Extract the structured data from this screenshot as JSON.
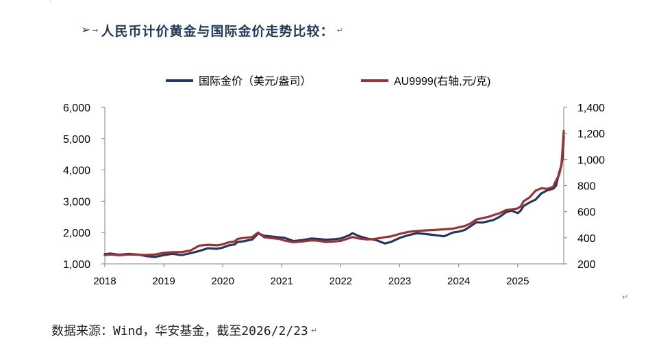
{
  "page": {
    "heading": {
      "bullet": "➢",
      "tab_mark": "→",
      "text": "人民币计价黄金与国际金价走势比较：",
      "paragraph_mark": "↵"
    },
    "footer": {
      "text": "数据来源：Wind，华安基金，截至2026/2/23",
      "paragraph_mark": "↵"
    },
    "stray_paragraph_mark": "↵",
    "stray_top_mark": "'"
  },
  "chart_data": {
    "type": "line",
    "title": "",
    "xlabel": "",
    "ylabel": "",
    "x_tick_labels": [
      "2018",
      "2019",
      "2020",
      "2021",
      "2022",
      "2023",
      "2024",
      "2025"
    ],
    "x_range": [
      2018.0,
      2025.78
    ],
    "y_left": {
      "ylim": [
        1000,
        6000
      ],
      "tick_values": [
        1000,
        2000,
        3000,
        4000,
        5000,
        6000
      ],
      "tick_labels": [
        "1,000",
        "2,000",
        "3,000",
        "4,000",
        "5,000",
        "6,000"
      ]
    },
    "y_right": {
      "ylim": [
        200,
        1400
      ],
      "tick_values": [
        200,
        400,
        600,
        800,
        1000,
        1200,
        1400
      ],
      "tick_labels": [
        "200",
        "400",
        "600",
        "800",
        "1,000",
        "1,200",
        "1,400"
      ]
    },
    "grid": false,
    "legend_position": "top-center",
    "series": [
      {
        "name": "国际金价（美元/盎司）",
        "axis": "left",
        "color": "#1f3864",
        "x": [
          2018.0,
          2018.1,
          2018.25,
          2018.4,
          2018.55,
          2018.7,
          2018.85,
          2019.0,
          2019.15,
          2019.3,
          2019.45,
          2019.6,
          2019.75,
          2019.9,
          2020.0,
          2020.1,
          2020.2,
          2020.25,
          2020.35,
          2020.5,
          2020.6,
          2020.7,
          2020.8,
          2020.95,
          2021.05,
          2021.2,
          2021.35,
          2021.5,
          2021.6,
          2021.75,
          2021.9,
          2022.0,
          2022.15,
          2022.2,
          2022.3,
          2022.45,
          2022.6,
          2022.75,
          2022.85,
          2023.0,
          2023.15,
          2023.3,
          2023.45,
          2023.6,
          2023.75,
          2023.9,
          2024.0,
          2024.1,
          2024.2,
          2024.3,
          2024.4,
          2024.5,
          2024.6,
          2024.7,
          2024.8,
          2024.9,
          2025.0,
          2025.05,
          2025.1,
          2025.2,
          2025.3,
          2025.4,
          2025.5,
          2025.6,
          2025.65,
          2025.7,
          2025.74,
          2025.76,
          2025.78
        ],
        "values": [
          1310,
          1330,
          1290,
          1320,
          1300,
          1250,
          1220,
          1280,
          1320,
          1280,
          1340,
          1410,
          1500,
          1480,
          1520,
          1590,
          1620,
          1700,
          1720,
          1780,
          1970,
          1900,
          1880,
          1850,
          1830,
          1730,
          1760,
          1810,
          1800,
          1770,
          1790,
          1810,
          1920,
          1980,
          1890,
          1810,
          1760,
          1650,
          1700,
          1830,
          1920,
          1980,
          1950,
          1920,
          1880,
          2000,
          2030,
          2080,
          2200,
          2330,
          2320,
          2360,
          2410,
          2510,
          2650,
          2700,
          2620,
          2700,
          2850,
          2960,
          3050,
          3250,
          3350,
          3400,
          3500,
          3900,
          4150,
          4400,
          5080
        ]
      },
      {
        "name": "AU9999(右轴,元/克)",
        "axis": "right",
        "color": "#a0302f",
        "x": [
          2018.0,
          2018.1,
          2018.25,
          2018.4,
          2018.55,
          2018.7,
          2018.85,
          2019.0,
          2019.15,
          2019.3,
          2019.45,
          2019.6,
          2019.75,
          2019.9,
          2020.0,
          2020.1,
          2020.2,
          2020.25,
          2020.35,
          2020.5,
          2020.6,
          2020.7,
          2020.8,
          2020.95,
          2021.05,
          2021.2,
          2021.35,
          2021.5,
          2021.6,
          2021.75,
          2021.9,
          2022.0,
          2022.15,
          2022.2,
          2022.3,
          2022.45,
          2022.6,
          2022.75,
          2022.85,
          2023.0,
          2023.15,
          2023.3,
          2023.45,
          2023.6,
          2023.75,
          2023.9,
          2024.0,
          2024.1,
          2024.2,
          2024.3,
          2024.4,
          2024.5,
          2024.6,
          2024.7,
          2024.8,
          2024.9,
          2025.0,
          2025.05,
          2025.1,
          2025.2,
          2025.3,
          2025.4,
          2025.5,
          2025.6,
          2025.65,
          2025.7,
          2025.74,
          2025.76,
          2025.78
        ],
        "values": [
          268,
          272,
          266,
          272,
          270,
          268,
          272,
          285,
          290,
          290,
          302,
          340,
          346,
          342,
          350,
          365,
          372,
          392,
          398,
          406,
          440,
          405,
          398,
          392,
          378,
          366,
          372,
          380,
          378,
          368,
          372,
          376,
          398,
          406,
          395,
          387,
          393,
          405,
          410,
          430,
          445,
          452,
          457,
          460,
          465,
          470,
          480,
          490,
          510,
          540,
          550,
          560,
          575,
          590,
          612,
          618,
          625,
          640,
          680,
          710,
          760,
          780,
          775,
          790,
          840,
          880,
          960,
          1080,
          1220
        ]
      }
    ]
  }
}
